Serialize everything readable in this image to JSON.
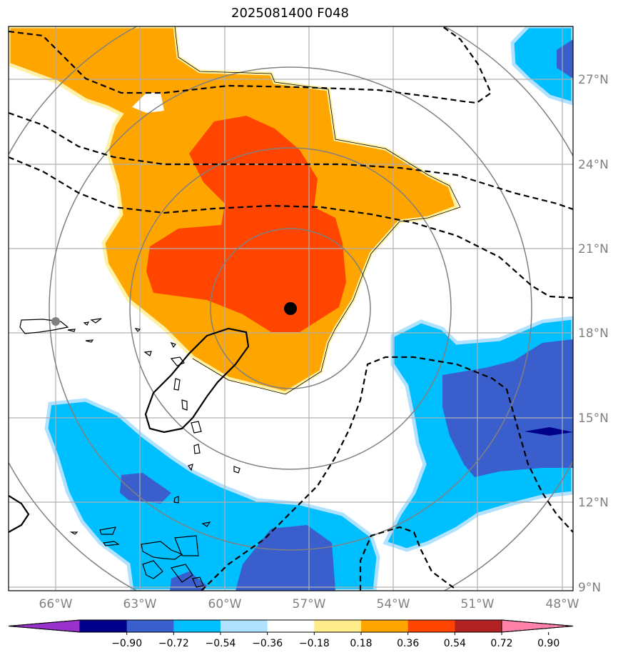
{
  "title": "2025081400 F048",
  "map": {
    "lon_labels": [
      "66°W",
      "63°W",
      "60°W",
      "57°W",
      "54°W",
      "51°W",
      "48°W"
    ],
    "lat_labels": [
      "27°N",
      "24°N",
      "21°N",
      "18°N",
      "15°N",
      "12°N",
      "9°N"
    ],
    "extent": {
      "lon_min": -67.6,
      "lon_max": -47.6,
      "lat_min": 8.9,
      "lat_max": 28.9
    },
    "center_marker": {
      "lon": -57.6,
      "lat": 18.9,
      "color": "#000000"
    },
    "ref_marker": {
      "lon": -66.0,
      "lat": 18.4,
      "color": "#808080"
    },
    "range_rings": 4,
    "gridlines": true
  },
  "colorbar": {
    "ticks": [
      "−0.90",
      "−0.72",
      "−0.54",
      "−0.36",
      "−0.18",
      "0.18",
      "0.36",
      "0.54",
      "0.72",
      "0.90"
    ],
    "colors": [
      "#9932cc",
      "#00008b",
      "#3a5fcd",
      "#00bfff",
      "#b0e2ff",
      "#ffffff",
      "#ffec8b",
      "#ffa500",
      "#ff4500",
      "#b22222",
      "#ff82ab"
    ],
    "extend": "both"
  }
}
